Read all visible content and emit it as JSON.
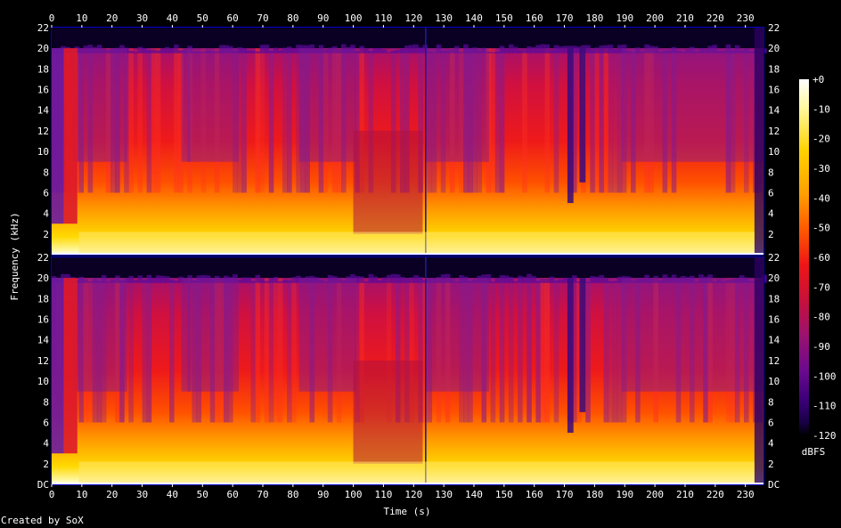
{
  "chart_data": {
    "type": "heatmap",
    "title": "",
    "xlabel": "Time (s)",
    "ylabel": "Frequency (kHz)",
    "colorbar_label": "dBFS",
    "xlim": [
      0,
      236
    ],
    "ylim_khz": [
      0,
      22
    ],
    "x_ticks": [
      0,
      10,
      20,
      30,
      40,
      50,
      60,
      70,
      80,
      90,
      100,
      110,
      120,
      130,
      140,
      150,
      160,
      170,
      180,
      190,
      200,
      210,
      220,
      230
    ],
    "y_tick_labels": [
      "DC",
      "2",
      "4",
      "6",
      "8",
      "10",
      "12",
      "14",
      "16",
      "18",
      "20",
      "22"
    ],
    "y_tick_values": [
      0,
      2,
      4,
      6,
      8,
      10,
      12,
      14,
      16,
      18,
      20,
      22
    ],
    "top_channel_tick_labels": [
      "2",
      "4",
      "6",
      "8",
      "10",
      "12",
      "14",
      "16",
      "18",
      "20",
      "22"
    ],
    "colorbar_ticks": [
      "+0",
      "-10",
      "-20",
      "-30",
      "-40",
      "-50",
      "-60",
      "-70",
      "-80",
      "-90",
      "-100",
      "-110",
      "-120"
    ],
    "colorbar_range_db": [
      -120,
      0
    ],
    "channels": 2,
    "colors": {
      "background": "#000000",
      "axis": "#0000c8",
      "scale": [
        "#000000",
        "#1a004a",
        "#3c0078",
        "#6a0a8e",
        "#9a1270",
        "#c8103a",
        "#ee1616",
        "#ff5a00",
        "#ffa000",
        "#ffd200",
        "#fff8a0",
        "#ffffff"
      ]
    }
  },
  "footer": {
    "credit": "Created by SoX"
  }
}
